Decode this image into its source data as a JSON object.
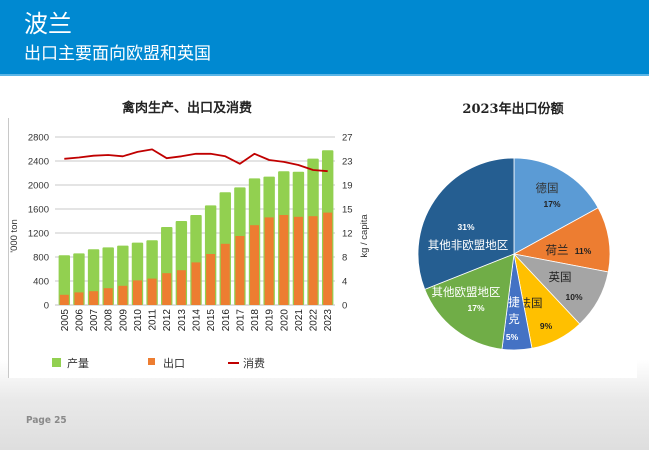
{
  "header": {
    "title": "波兰",
    "subtitle": "出口主要面向欧盟和英国"
  },
  "footer": {
    "page_label": "Page 25"
  },
  "colors": {
    "header_bg": "#0089D1",
    "production": "#92D050",
    "export": "#ED7D31",
    "consumption": "#C00000"
  },
  "chart_data": [
    {
      "type": "bar",
      "title": "禽肉生产、出口及消费",
      "xlabel": "",
      "ylabel": "'000 ton",
      "y2label": "kg / capita",
      "ylim": [
        0,
        2800
      ],
      "y2lim": [
        0,
        27
      ],
      "yticks": [
        0,
        400,
        800,
        1200,
        1600,
        2000,
        2400,
        2800
      ],
      "y2ticks": [
        0,
        4,
        8,
        12,
        15,
        19,
        23,
        27
      ],
      "grid": true,
      "legend_position": "bottom",
      "categories": [
        "2005",
        "2006",
        "2007",
        "2008",
        "2009",
        "2010",
        "2011",
        "2012",
        "2013",
        "2014",
        "2015",
        "2016",
        "2017",
        "2018",
        "2019",
        "2020",
        "2021",
        "2022",
        "2023"
      ],
      "series": [
        {
          "name": "产量",
          "kind": "bar",
          "axis": "left",
          "color": "#92D050",
          "values": [
            830,
            860,
            930,
            960,
            990,
            1040,
            1080,
            1300,
            1400,
            1500,
            1660,
            1880,
            1960,
            2110,
            2140,
            2230,
            2220,
            2440,
            2580
          ]
        },
        {
          "name": "出口",
          "kind": "bar",
          "axis": "left",
          "color": "#ED7D31",
          "values": [
            170,
            210,
            230,
            280,
            320,
            410,
            440,
            530,
            580,
            710,
            850,
            1020,
            1150,
            1330,
            1460,
            1500,
            1470,
            1480,
            1540
          ]
        },
        {
          "name": "消费",
          "kind": "line",
          "axis": "right",
          "color": "#C00000",
          "values": [
            23.5,
            23.7,
            24.0,
            24.1,
            23.9,
            24.6,
            25.0,
            23.6,
            23.9,
            24.3,
            24.3,
            23.9,
            22.7,
            24.3,
            23.3,
            23.0,
            22.5,
            21.7,
            21.5
          ]
        }
      ]
    },
    {
      "type": "pie",
      "title": "2023年出口份额",
      "start": "top",
      "direction": "clockwise",
      "slices": [
        {
          "label": "德国",
          "value": 17,
          "pct_label": "17%",
          "color": "#5B9BD5",
          "label_color": "#333333"
        },
        {
          "label": "荷兰",
          "value": 11,
          "pct_label": "11%",
          "color": "#ED7D31",
          "label_color": "#222222"
        },
        {
          "label": "英国",
          "value": 10,
          "pct_label": "10%",
          "color": "#A5A5A5",
          "label_color": "#222222"
        },
        {
          "label": "法国",
          "value": 9,
          "pct_label": "9%",
          "color": "#FFC000",
          "label_color": "#222222"
        },
        {
          "label": "捷克",
          "value": 5,
          "pct_label": "5%",
          "color": "#4472C4",
          "label_color": "#ffffff"
        },
        {
          "label": "其他欧盟地区",
          "value": 17,
          "pct_label": "17%",
          "color": "#70AD47",
          "label_color": "#ffffff"
        },
        {
          "label": "其他非欧盟地区",
          "value": 31,
          "pct_label": "31%",
          "color": "#255E91",
          "label_color": "#ffffff"
        }
      ]
    }
  ]
}
